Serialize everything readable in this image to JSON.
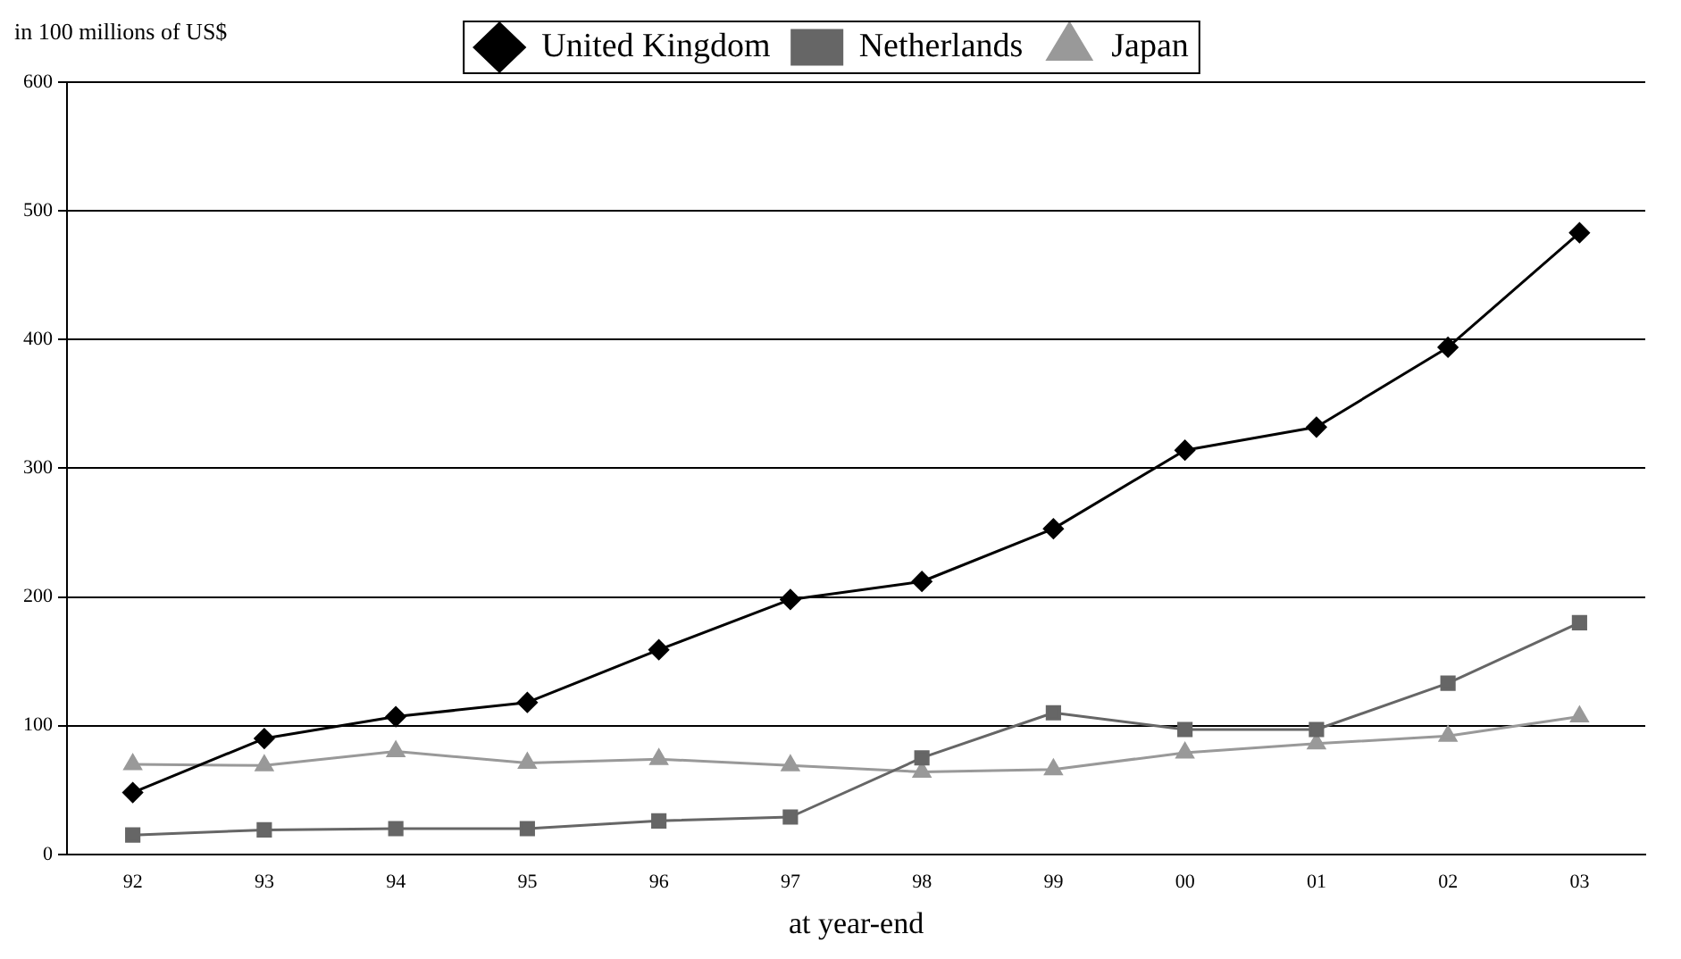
{
  "chart_data": {
    "type": "line",
    "ylabel": "in 100 millions of US$",
    "xlabel": "at year-end",
    "categories": [
      "92",
      "93",
      "94",
      "95",
      "96",
      "97",
      "98",
      "99",
      "00",
      "01",
      "02",
      "03"
    ],
    "series": [
      {
        "name": "United Kingdom",
        "color": "#000000",
        "marker": "diamond",
        "values": [
          48,
          90,
          107,
          118,
          159,
          198,
          212,
          253,
          314,
          332,
          394,
          483
        ]
      },
      {
        "name": "Netherlands",
        "color": "#666666",
        "marker": "square",
        "values": [
          15,
          19,
          20,
          20,
          26,
          29,
          75,
          110,
          97,
          97,
          133,
          180
        ]
      },
      {
        "name": "Japan",
        "color": "#999999",
        "marker": "triangle",
        "values": [
          70,
          69,
          80,
          71,
          74,
          69,
          64,
          66,
          79,
          86,
          92,
          107
        ]
      }
    ],
    "ylim": [
      0,
      600
    ],
    "yticks": [
      0,
      100,
      200,
      300,
      400,
      500,
      600
    ],
    "grid": "y",
    "legend": "top",
    "line_style": "solid"
  }
}
